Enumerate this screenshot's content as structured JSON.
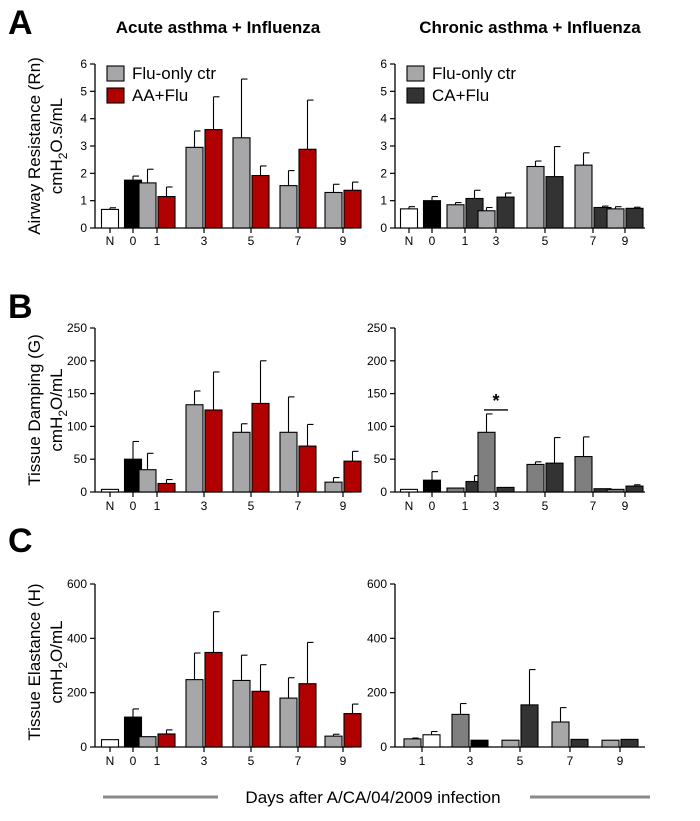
{
  "figure": {
    "col_titles": [
      "Acute asthma + Influenza",
      "Chronic asthma + Influenza"
    ],
    "x_axis_label": "Days after A/CA/04/2009 infection",
    "colors": {
      "naive": "#ffffff",
      "day0": "#000000",
      "flu_ctr_acute": "#a7a7a9",
      "flu_ctr_chronic": "#a7a7a9",
      "aa_flu": "#b00000",
      "ca_flu": "#333333",
      "flu_ctr_chronic_b": "#7f7f7f"
    }
  },
  "rows": [
    {
      "letter": "A",
      "ylabel1": "Airway Resistance (Rn)",
      "ylabel2_main": "cmH",
      "ylabel2_sub": "2",
      "ylabel2_rest": "O.s/mL"
    },
    {
      "letter": "B",
      "ylabel1": "Tissue Damping (G)",
      "ylabel2_main": "cmH",
      "ylabel2_sub": "2",
      "ylabel2_rest": "O/mL"
    },
    {
      "letter": "C",
      "ylabel1": "Tissue Elastance (H)",
      "ylabel2_main": "cmH",
      "ylabel2_sub": "2",
      "ylabel2_rest": "O/mL"
    }
  ],
  "chart_data": [
    {
      "id": "A-acute",
      "type": "bar",
      "title": "Acute asthma + Influenza",
      "ylabel": "Airway Resistance (Rn) cmH2O.s/mL",
      "ylim": [
        0,
        6
      ],
      "yticks": [
        "0",
        "1",
        "2",
        "3",
        "4",
        "5",
        "6"
      ],
      "categories": [
        "N",
        "0",
        "1",
        "3",
        "5",
        "7",
        "9"
      ],
      "legend": [
        {
          "name": "Flu-only ctr",
          "color": "#a7a7a9"
        },
        {
          "name": "AA+Flu",
          "color": "#b00000"
        }
      ],
      "bars": [
        {
          "cat": "N",
          "series": "Naive",
          "value": 0.68,
          "err": 0.06,
          "color": "#ffffff"
        },
        {
          "cat": "0",
          "series": "Day 0",
          "value": 1.75,
          "err": 0.15,
          "color": "#000000"
        },
        {
          "cat": "1",
          "series": "Flu-only ctr",
          "value": 1.65,
          "err": 0.5,
          "color": "#a7a7a9"
        },
        {
          "cat": "1",
          "series": "AA+Flu",
          "value": 1.15,
          "err": 0.35,
          "color": "#b00000"
        },
        {
          "cat": "3",
          "series": "Flu-only ctr",
          "value": 2.95,
          "err": 0.6,
          "color": "#a7a7a9"
        },
        {
          "cat": "3",
          "series": "AA+Flu",
          "value": 3.6,
          "err": 1.2,
          "color": "#b00000"
        },
        {
          "cat": "5",
          "series": "Flu-only ctr",
          "value": 3.3,
          "err": 2.15,
          "color": "#a7a7a9"
        },
        {
          "cat": "5",
          "series": "AA+Flu",
          "value": 1.92,
          "err": 0.35,
          "color": "#b00000"
        },
        {
          "cat": "7",
          "series": "Flu-only ctr",
          "value": 1.55,
          "err": 0.55,
          "color": "#a7a7a9"
        },
        {
          "cat": "7",
          "series": "AA+Flu",
          "value": 2.88,
          "err": 1.8,
          "color": "#b00000"
        },
        {
          "cat": "9",
          "series": "Flu-only ctr",
          "value": 1.3,
          "err": 0.3,
          "color": "#a7a7a9"
        },
        {
          "cat": "9",
          "series": "AA+Flu",
          "value": 1.38,
          "err": 0.3,
          "color": "#b00000"
        }
      ]
    },
    {
      "id": "A-chronic",
      "type": "bar",
      "title": "Chronic asthma + Influenza",
      "ylabel": "Airway Resistance (Rn) cmH2O.s/mL",
      "ylim": [
        0,
        6
      ],
      "yticks": [
        "0",
        "1",
        "2",
        "3",
        "4",
        "5",
        "6"
      ],
      "categories": [
        "N",
        "0",
        "1",
        "3",
        "5",
        "7",
        "9"
      ],
      "legend": [
        {
          "name": "Flu-only ctr",
          "color": "#a7a7a9"
        },
        {
          "name": "CA+Flu",
          "color": "#333333"
        }
      ],
      "bars": [
        {
          "cat": "N",
          "series": "Naive",
          "value": 0.7,
          "err": 0.08,
          "color": "#ffffff"
        },
        {
          "cat": "0",
          "series": "Day 0",
          "value": 1.0,
          "err": 0.15,
          "color": "#000000"
        },
        {
          "cat": "1",
          "series": "Flu-only ctr",
          "value": 0.85,
          "err": 0.08,
          "color": "#a7a7a9"
        },
        {
          "cat": "1",
          "series": "CA+Flu",
          "value": 1.08,
          "err": 0.3,
          "color": "#333333"
        },
        {
          "cat": "3",
          "series": "Flu-only ctr",
          "value": 0.63,
          "err": 0.12,
          "color": "#a7a7a9"
        },
        {
          "cat": "3",
          "series": "CA+Flu",
          "value": 1.13,
          "err": 0.15,
          "color": "#333333"
        },
        {
          "cat": "5",
          "series": "Flu-only ctr",
          "value": 2.25,
          "err": 0.2,
          "color": "#a7a7a9"
        },
        {
          "cat": "5",
          "series": "CA+Flu",
          "value": 1.88,
          "err": 1.1,
          "color": "#333333"
        },
        {
          "cat": "7",
          "series": "Flu-only ctr",
          "value": 2.3,
          "err": 0.45,
          "color": "#a7a7a9"
        },
        {
          "cat": "7",
          "series": "CA+Flu",
          "value": 0.75,
          "err": 0.05,
          "color": "#333333"
        },
        {
          "cat": "9",
          "series": "Flu-only ctr",
          "value": 0.7,
          "err": 0.08,
          "color": "#a7a7a9"
        },
        {
          "cat": "9",
          "series": "CA+Flu",
          "value": 0.72,
          "err": 0.04,
          "color": "#333333"
        }
      ]
    },
    {
      "id": "B-acute",
      "type": "bar",
      "ylabel": "Tissue Damping (G) cmH2O/mL",
      "ylim": [
        0,
        250
      ],
      "yticks": [
        "0",
        "50",
        "100",
        "150",
        "200",
        "250"
      ],
      "categories": [
        "N",
        "0",
        "1",
        "3",
        "5",
        "7",
        "9"
      ],
      "bars": [
        {
          "cat": "N",
          "series": "Naive",
          "value": 4,
          "err": 0,
          "color": "#ffffff"
        },
        {
          "cat": "0",
          "series": "Day 0",
          "value": 50,
          "err": 27,
          "color": "#000000"
        },
        {
          "cat": "1",
          "series": "Flu-only ctr",
          "value": 34,
          "err": 25,
          "color": "#a7a7a9"
        },
        {
          "cat": "1",
          "series": "AA+Flu",
          "value": 13,
          "err": 6,
          "color": "#b00000"
        },
        {
          "cat": "3",
          "series": "Flu-only ctr",
          "value": 133,
          "err": 21,
          "color": "#a7a7a9"
        },
        {
          "cat": "3",
          "series": "AA+Flu",
          "value": 125,
          "err": 58,
          "color": "#b00000"
        },
        {
          "cat": "5",
          "series": "Flu-only ctr",
          "value": 91,
          "err": 13,
          "color": "#a7a7a9"
        },
        {
          "cat": "5",
          "series": "AA+Flu",
          "value": 135,
          "err": 65,
          "color": "#b00000"
        },
        {
          "cat": "7",
          "series": "Flu-only ctr",
          "value": 91,
          "err": 54,
          "color": "#a7a7a9"
        },
        {
          "cat": "7",
          "series": "AA+Flu",
          "value": 70,
          "err": 33,
          "color": "#b00000"
        },
        {
          "cat": "9",
          "series": "Flu-only ctr",
          "value": 15,
          "err": 7,
          "color": "#a7a7a9"
        },
        {
          "cat": "9",
          "series": "AA+Flu",
          "value": 47,
          "err": 15,
          "color": "#b00000"
        }
      ]
    },
    {
      "id": "B-chronic",
      "type": "bar",
      "ylabel": "Tissue Damping (G) cmH2O/mL",
      "ylim": [
        0,
        250
      ],
      "yticks": [
        "0",
        "50",
        "100",
        "150",
        "200",
        "250"
      ],
      "categories": [
        "N",
        "0",
        "1",
        "3",
        "5",
        "7",
        "9"
      ],
      "annotation": {
        "text": "*",
        "between": [
          "3",
          "3"
        ]
      },
      "bars": [
        {
          "cat": "N",
          "series": "Naive",
          "value": 4,
          "err": 0,
          "color": "#ffffff"
        },
        {
          "cat": "0",
          "series": "Day 0",
          "value": 18,
          "err": 13,
          "color": "#000000"
        },
        {
          "cat": "1",
          "series": "Flu-only ctr",
          "value": 6,
          "err": 0,
          "color": "#7f7f7f"
        },
        {
          "cat": "1",
          "series": "CA+Flu",
          "value": 16,
          "err": 9,
          "color": "#333333"
        },
        {
          "cat": "3",
          "series": "Flu-only ctr",
          "value": 91,
          "err": 28,
          "color": "#7f7f7f"
        },
        {
          "cat": "3",
          "series": "CA+Flu",
          "value": 7,
          "err": 0,
          "color": "#333333"
        },
        {
          "cat": "5",
          "series": "Flu-only ctr",
          "value": 42,
          "err": 4,
          "color": "#7f7f7f"
        },
        {
          "cat": "5",
          "series": "CA+Flu",
          "value": 44,
          "err": 39,
          "color": "#333333"
        },
        {
          "cat": "7",
          "series": "Flu-only ctr",
          "value": 54,
          "err": 30,
          "color": "#7f7f7f"
        },
        {
          "cat": "7",
          "series": "CA+Flu",
          "value": 5,
          "err": 0,
          "color": "#333333"
        },
        {
          "cat": "9",
          "series": "Flu-only ctr",
          "value": 4,
          "err": 0,
          "color": "#7f7f7f"
        },
        {
          "cat": "9",
          "series": "CA+Flu",
          "value": 9,
          "err": 2,
          "color": "#333333"
        }
      ]
    },
    {
      "id": "C-acute",
      "type": "bar",
      "ylabel": "Tissue Elastance (H) cmH2O/mL",
      "ylim": [
        0,
        600
      ],
      "yticks": [
        "0",
        "200",
        "400",
        "600"
      ],
      "categories": [
        "N",
        "0",
        "1",
        "3",
        "5",
        "7",
        "9"
      ],
      "bars": [
        {
          "cat": "N",
          "series": "Naive",
          "value": 27,
          "err": 0,
          "color": "#ffffff"
        },
        {
          "cat": "0",
          "series": "Day 0",
          "value": 110,
          "err": 30,
          "color": "#000000"
        },
        {
          "cat": "1",
          "series": "Flu-only ctr",
          "value": 38,
          "err": 0,
          "color": "#a7a7a9"
        },
        {
          "cat": "1",
          "series": "AA+Flu",
          "value": 48,
          "err": 15,
          "color": "#b00000"
        },
        {
          "cat": "3",
          "series": "Flu-only ctr",
          "value": 248,
          "err": 98,
          "color": "#a7a7a9"
        },
        {
          "cat": "3",
          "series": "AA+Flu",
          "value": 348,
          "err": 150,
          "color": "#b00000"
        },
        {
          "cat": "5",
          "series": "Flu-only ctr",
          "value": 245,
          "err": 93,
          "color": "#a7a7a9"
        },
        {
          "cat": "5",
          "series": "AA+Flu",
          "value": 205,
          "err": 98,
          "color": "#b00000"
        },
        {
          "cat": "7",
          "series": "Flu-only ctr",
          "value": 180,
          "err": 75,
          "color": "#a7a7a9"
        },
        {
          "cat": "7",
          "series": "AA+Flu",
          "value": 233,
          "err": 152,
          "color": "#b00000"
        },
        {
          "cat": "9",
          "series": "Flu-only ctr",
          "value": 40,
          "err": 7,
          "color": "#a7a7a9"
        },
        {
          "cat": "9",
          "series": "AA+Flu",
          "value": 123,
          "err": 35,
          "color": "#b00000"
        }
      ]
    },
    {
      "id": "C-chronic",
      "type": "bar",
      "ylabel": "Tissue Elastance (H) cmH2O/mL",
      "ylim": [
        0,
        600
      ],
      "yticks": [
        "0",
        "200",
        "400",
        "600"
      ],
      "categories": [
        "1",
        "3",
        "5",
        "7",
        "9"
      ],
      "bars": [
        {
          "cat": "1",
          "series": "Flu-only ctr",
          "value": 30,
          "err": 3,
          "color": "#a7a7a9"
        },
        {
          "cat": "1",
          "series": "Day 0 / naive",
          "value": 45,
          "err": 12,
          "color": "#ffffff"
        },
        {
          "cat": "3",
          "series": "Flu-only ctr",
          "value": 120,
          "err": 40,
          "color": "#7f7f7f"
        },
        {
          "cat": "3",
          "series": "CA+Flu",
          "value": 25,
          "err": 0,
          "color": "#000000"
        },
        {
          "cat": "5",
          "series": "Flu-only ctr",
          "value": 25,
          "err": 0,
          "color": "#a7a7a9"
        },
        {
          "cat": "5",
          "series": "CA+Flu",
          "value": 155,
          "err": 130,
          "color": "#333333"
        },
        {
          "cat": "7",
          "series": "Flu-only ctr",
          "value": 92,
          "err": 53,
          "color": "#a7a7a9"
        },
        {
          "cat": "7",
          "series": "CA+Flu",
          "value": 28,
          "err": 0,
          "color": "#333333"
        },
        {
          "cat": "9",
          "series": "Flu-only ctr",
          "value": 25,
          "err": 0,
          "color": "#a7a7a9"
        },
        {
          "cat": "9",
          "series": "CA+Flu",
          "value": 28,
          "err": 0,
          "color": "#333333"
        }
      ]
    }
  ]
}
